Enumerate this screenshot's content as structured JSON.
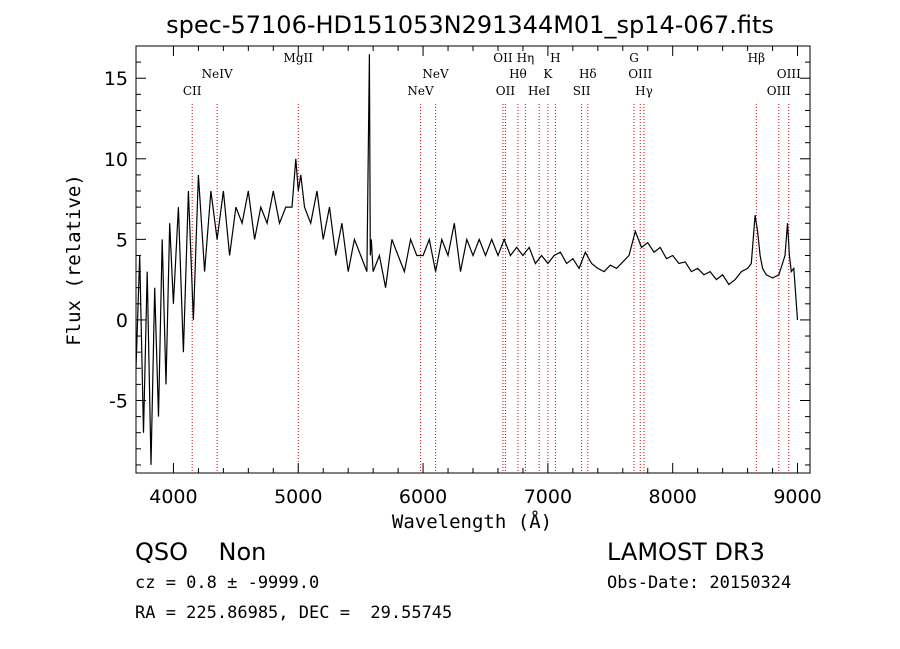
{
  "chart_data": {
    "type": "line",
    "title": "spec-57106-HD151053N291344M01_sp14-067.fits",
    "xlabel": "Wavelength (Å)",
    "ylabel": "Flux (relative)",
    "xlim": [
      3700,
      9100
    ],
    "ylim": [
      -9.5,
      17
    ],
    "x_ticks": [
      4000,
      5000,
      6000,
      7000,
      8000,
      9000
    ],
    "y_ticks": [
      -5,
      0,
      5,
      10,
      15
    ],
    "grid": false,
    "series": [
      {
        "x": [
          3700,
          3730,
          3760,
          3790,
          3820,
          3850,
          3880,
          3910,
          3940,
          3970,
          4000,
          4040,
          4080,
          4120,
          4160,
          4200,
          4250,
          4300,
          4350,
          4400,
          4450,
          4500,
          4550,
          4600,
          4650,
          4700,
          4750,
          4800,
          4850,
          4900,
          4950,
          4980,
          5000,
          5020,
          5050,
          5100,
          5150,
          5200,
          5250,
          5300,
          5350,
          5400,
          5450,
          5500,
          5550,
          5570,
          5577,
          5585,
          5600,
          5650,
          5700,
          5750,
          5800,
          5850,
          5900,
          5950,
          6000,
          6050,
          6100,
          6150,
          6200,
          6250,
          6300,
          6350,
          6400,
          6450,
          6500,
          6550,
          6600,
          6650,
          6700,
          6750,
          6800,
          6850,
          6900,
          6950,
          7000,
          7050,
          7100,
          7150,
          7200,
          7250,
          7300,
          7350,
          7400,
          7450,
          7500,
          7550,
          7600,
          7650,
          7700,
          7750,
          7800,
          7850,
          7900,
          7950,
          8000,
          8050,
          8100,
          8150,
          8200,
          8250,
          8300,
          8350,
          8400,
          8450,
          8500,
          8550,
          8600,
          8630,
          8660,
          8680,
          8700,
          8720,
          8750,
          8800,
          8850,
          8880,
          8900,
          8920,
          8935,
          8950,
          8970,
          9000
        ],
        "y": [
          -3,
          4,
          -7,
          3,
          -9,
          2,
          -6,
          5,
          -4,
          6,
          1,
          7,
          -2,
          8,
          0,
          9,
          3,
          8,
          5,
          8,
          4,
          7,
          6,
          8,
          5,
          7,
          6,
          8,
          6,
          7,
          7,
          10,
          8,
          9,
          7,
          6,
          8,
          5,
          7,
          4,
          6,
          3,
          5,
          4,
          3,
          16.5,
          4,
          5,
          3,
          4,
          2,
          5,
          4,
          3,
          5,
          4,
          4,
          5,
          3,
          5,
          4,
          6,
          3,
          5,
          4,
          5,
          4,
          5,
          4,
          5,
          4,
          4.5,
          4,
          4.5,
          3.5,
          4,
          3.5,
          4,
          4.2,
          3.5,
          3.8,
          3.2,
          4.2,
          3.5,
          3.2,
          3,
          3.4,
          3.2,
          3.6,
          4,
          5.5,
          4.5,
          4.8,
          4.2,
          4.5,
          3.8,
          4,
          3.5,
          3.6,
          3,
          3.2,
          2.8,
          3,
          2.5,
          2.8,
          2.2,
          2.5,
          3,
          3.2,
          3.5,
          6.5,
          5.5,
          4,
          3.2,
          2.8,
          2.6,
          2.8,
          3.5,
          4,
          6,
          4,
          3,
          3.2,
          0
        ]
      }
    ],
    "emission_lines": [
      {
        "label": "CII",
        "x": 4150,
        "row": "lower"
      },
      {
        "label": "NeIV",
        "x": 4350,
        "row": "upper"
      },
      {
        "label": "MgII",
        "x": 5000,
        "row": "top"
      },
      {
        "label": "NeV",
        "x": 5980,
        "row": "lower"
      },
      {
        "label": "NeV",
        "x": 6100,
        "row": "upper"
      },
      {
        "label": "OII",
        "x": 6640,
        "row": "top"
      },
      {
        "label": "OII",
        "x": 6660,
        "row": "lower"
      },
      {
        "label": "Hθ",
        "x": 6760,
        "row": "upper"
      },
      {
        "label": "Hη",
        "x": 6820,
        "row": "top"
      },
      {
        "label": "HeI",
        "x": 6930,
        "row": "lower"
      },
      {
        "label": "K",
        "x": 7000,
        "row": "upper"
      },
      {
        "label": "H",
        "x": 7060,
        "row": "top"
      },
      {
        "label": "SII",
        "x": 7270,
        "row": "lower"
      },
      {
        "label": "Hδ",
        "x": 7320,
        "row": "upper"
      },
      {
        "label": "G",
        "x": 7690,
        "row": "top"
      },
      {
        "label": "OIII",
        "x": 7740,
        "row": "upper"
      },
      {
        "label": "Hγ",
        "x": 7770,
        "row": "lower"
      },
      {
        "label": "Hβ",
        "x": 8670,
        "row": "top"
      },
      {
        "label": "OIII",
        "x": 8850,
        "row": "lower"
      },
      {
        "label": "OIII",
        "x": 8930,
        "row": "upper"
      }
    ],
    "line_marker_color": "#cc0000",
    "spectrum_color": "#000000"
  },
  "info": {
    "class_line": "QSO    Non",
    "survey": "LAMOST DR3",
    "cz": "cz = 0.8 ± -9999.0",
    "obs_date": "Obs-Date: 20150324",
    "coords": "RA = 225.86985, DEC =  29.55745"
  }
}
